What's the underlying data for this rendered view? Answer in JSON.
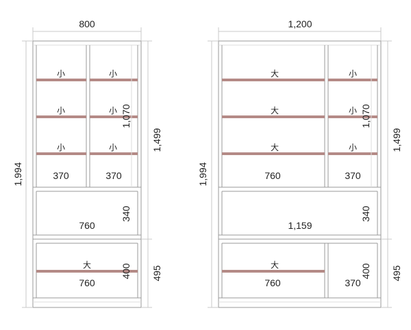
{
  "left": {
    "width": "800",
    "height_total": "1,994",
    "height_upper": "1,499",
    "height_lower": "495",
    "inner_height": "1,070",
    "comp_width_a": "370",
    "comp_width_b": "370",
    "mid_width": "760",
    "mid_height": "340",
    "bottom_width": "760",
    "bottom_height": "400",
    "shelf_labels": [
      "小",
      "小",
      "小",
      "小",
      "小",
      "小"
    ],
    "bottom_shelf_label": "大"
  },
  "right": {
    "width": "1,200",
    "height_total": "1,994",
    "height_upper": "1,499",
    "height_lower": "495",
    "inner_height": "1,070",
    "comp_width_a": "760",
    "comp_width_b": "370",
    "mid_width": "1,159",
    "mid_height": "340",
    "bottom_width": "760",
    "bottom_width_b": "370",
    "bottom_height": "400",
    "shelf_labels": [
      "大",
      "小",
      "大",
      "小",
      "大",
      "小"
    ],
    "bottom_shelf_label": "大"
  },
  "colors": {
    "shelf": "#b48a86",
    "frame": "#9a9a9a",
    "guide": "#c8c8c8"
  }
}
